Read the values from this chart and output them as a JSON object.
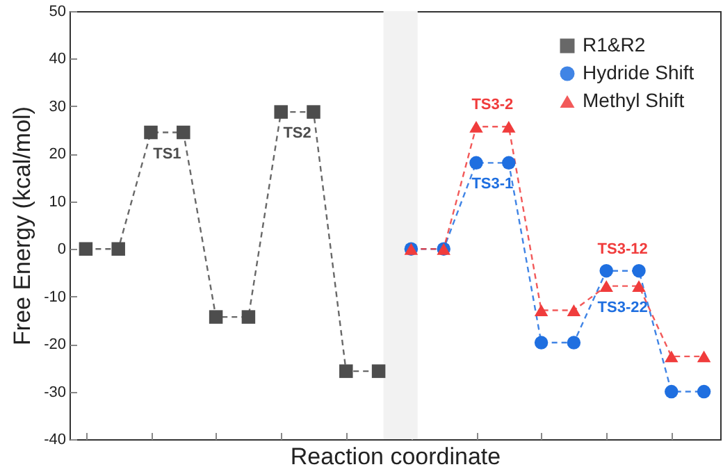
{
  "chart_data": {
    "type": "line",
    "xlabel": "Reaction coordinate",
    "ylabel": "Free Energy (kcal/mol)",
    "categories": [
      null,
      null,
      null,
      null,
      null,
      null,
      null,
      null,
      null,
      null,
      null,
      null,
      null,
      null,
      null,
      null,
      null,
      null,
      null,
      null
    ],
    "ylim": [
      -40,
      50
    ],
    "yticks": [
      -40,
      -30,
      -20,
      -10,
      0,
      10,
      20,
      30,
      40,
      50
    ],
    "tick_labels": "y",
    "grid": false,
    "legend": "top right",
    "line_style": "dashed",
    "series": [
      {
        "name": "R1&R2",
        "color": "#4d4d4d",
        "marker": "square",
        "values": [
          0,
          0,
          24.5,
          24.5,
          -14.3,
          -14.3,
          28.8,
          28.8,
          -25.7,
          -25.7,
          null,
          null,
          null,
          null,
          null,
          null,
          null,
          null,
          null,
          null
        ]
      },
      {
        "name": "Hydride Shift",
        "color": "#1f6fe0",
        "marker": "circle",
        "values": [
          null,
          null,
          null,
          null,
          null,
          null,
          null,
          null,
          null,
          null,
          0,
          0,
          18.1,
          18.1,
          -19.7,
          -19.7,
          -4.6,
          -4.6,
          -30,
          -30
        ]
      },
      {
        "name": "Methyl Shift",
        "color": "#f03c3c",
        "marker": "triangle",
        "values": [
          null,
          null,
          null,
          null,
          null,
          null,
          null,
          null,
          null,
          null,
          0,
          0,
          25.7,
          25.7,
          -12.9,
          -12.9,
          -7.8,
          -7.8,
          -22.6,
          -22.6
        ]
      }
    ],
    "annotations": [
      {
        "text": "TS1",
        "y": 24.5
      },
      {
        "text": "TS2",
        "y": 28.8
      },
      {
        "text": "TS3-2",
        "y": 25.7
      },
      {
        "text": "TS3-1",
        "y": 18.1
      },
      {
        "text": "TS3-12",
        "y": -7.8
      },
      {
        "text": "TS3-22",
        "y": -4.6
      }
    ]
  }
}
